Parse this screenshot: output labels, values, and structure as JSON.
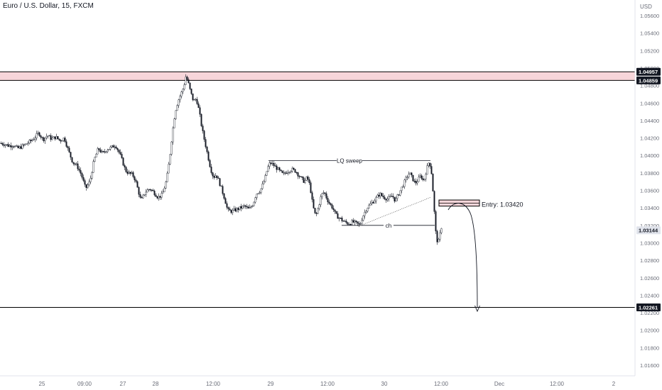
{
  "header": {
    "title": "Euro / U.S. Dollar, 15, FXCM",
    "currency": "USD"
  },
  "chart_data": {
    "type": "candlestick",
    "y_axis": {
      "ticks": [
        "1.05600",
        "1.05400",
        "1.05200",
        "1.05000",
        "1.04800",
        "1.04600",
        "1.04400",
        "1.04200",
        "1.04000",
        "1.03800",
        "1.03600",
        "1.03400",
        "1.03200",
        "1.03000",
        "1.02800",
        "1.02600",
        "1.02400",
        "1.02200",
        "1.02000",
        "1.01800",
        "1.01600"
      ],
      "range": [
        1.0158,
        1.0574
      ]
    },
    "x_axis": {
      "ticks": [
        "25",
        "09:00",
        "27",
        "28",
        "12:00",
        "29",
        "12:00",
        "30",
        "12:00",
        "Dec",
        "12:00",
        "2"
      ]
    },
    "price_labels": [
      {
        "value": "1.04957",
        "style": "dark",
        "role": "zone_top"
      },
      {
        "value": "1.04859",
        "style": "dark",
        "role": "zone_bottom"
      },
      {
        "value": "1.03144",
        "style": "light",
        "role": "last_price"
      },
      {
        "value": "1.02261",
        "style": "dark",
        "role": "target"
      }
    ],
    "annotations": {
      "lq_sweep": "LQ sweep",
      "ch": "ch",
      "entry": "Entry: 1.03420"
    },
    "levels": {
      "resistance_zone": [
        1.04859,
        1.04957
      ],
      "target": 1.02261,
      "lq_sweep_level": 1.0394,
      "ch_level": 1.032,
      "entry_zone": [
        1.0342,
        1.0349
      ]
    },
    "price_path": [
      [
        0,
        1.0414
      ],
      [
        6,
        1.0413
      ],
      [
        12,
        1.0411
      ],
      [
        18,
        1.0412
      ],
      [
        24,
        1.0408
      ],
      [
        30,
        1.041
      ],
      [
        36,
        1.0413
      ],
      [
        42,
        1.0416
      ],
      [
        48,
        1.042
      ],
      [
        54,
        1.0426
      ],
      [
        60,
        1.0418
      ],
      [
        66,
        1.0423
      ],
      [
        72,
        1.0419
      ],
      [
        78,
        1.0421
      ],
      [
        84,
        1.0417
      ],
      [
        90,
        1.042
      ],
      [
        96,
        1.0405
      ],
      [
        102,
        1.0392
      ],
      [
        108,
        1.0388
      ],
      [
        114,
        1.0378
      ],
      [
        120,
        1.0362
      ],
      [
        126,
        1.037
      ],
      [
        132,
        1.0395
      ],
      [
        138,
        1.0408
      ],
      [
        144,
        1.0402
      ],
      [
        150,
        1.0407
      ],
      [
        156,
        1.0409
      ],
      [
        162,
        1.0412
      ],
      [
        168,
        1.0402
      ],
      [
        172,
        1.0393
      ],
      [
        176,
        1.0383
      ],
      [
        180,
        1.038
      ],
      [
        186,
        1.0378
      ],
      [
        190,
        1.0372
      ],
      [
        194,
        1.036
      ],
      [
        198,
        1.0348
      ],
      [
        204,
        1.0358
      ],
      [
        210,
        1.0362
      ],
      [
        216,
        1.0358
      ],
      [
        222,
        1.0352
      ],
      [
        228,
        1.0355
      ],
      [
        234,
        1.0372
      ],
      [
        238,
        1.0395
      ],
      [
        242,
        1.0425
      ],
      [
        246,
        1.045
      ],
      [
        250,
        1.0462
      ],
      [
        254,
        1.047
      ],
      [
        258,
        1.0478
      ],
      [
        261,
        1.049
      ],
      [
        264,
        1.0485
      ],
      [
        268,
        1.0472
      ],
      [
        272,
        1.0462
      ],
      [
        276,
        1.0465
      ],
      [
        280,
        1.045
      ],
      [
        284,
        1.043
      ],
      [
        288,
        1.0415
      ],
      [
        292,
        1.04
      ],
      [
        296,
        1.0385
      ],
      [
        300,
        1.0375
      ],
      [
        304,
        1.0378
      ],
      [
        308,
        1.037
      ],
      [
        312,
        1.036
      ],
      [
        316,
        1.035
      ],
      [
        320,
        1.0337
      ],
      [
        326,
        1.0336
      ],
      [
        332,
        1.0338
      ],
      [
        338,
        1.034
      ],
      [
        344,
        1.0342
      ],
      [
        350,
        1.0338
      ],
      [
        356,
        1.0345
      ],
      [
        360,
        1.0356
      ],
      [
        366,
        1.036
      ],
      [
        372,
        1.0372
      ],
      [
        376,
        1.0385
      ],
      [
        380,
        1.0392
      ],
      [
        386,
        1.0388
      ],
      [
        392,
        1.0383
      ],
      [
        398,
        1.0378
      ],
      [
        404,
        1.0382
      ],
      [
        410,
        1.0384
      ],
      [
        416,
        1.0382
      ],
      [
        422,
        1.0375
      ],
      [
        428,
        1.037
      ],
      [
        432,
        1.0375
      ],
      [
        436,
        1.0365
      ],
      [
        440,
        1.0342
      ],
      [
        444,
        1.033
      ],
      [
        448,
        1.0342
      ],
      [
        452,
        1.0355
      ],
      [
        456,
        1.0358
      ],
      [
        460,
        1.035
      ],
      [
        464,
        1.0344
      ],
      [
        468,
        1.034
      ],
      [
        472,
        1.0332
      ],
      [
        478,
        1.0328
      ],
      [
        484,
        1.0324
      ],
      [
        490,
        1.0322
      ],
      [
        496,
        1.0324
      ],
      [
        502,
        1.0322
      ],
      [
        506,
        1.032
      ],
      [
        510,
        1.033
      ],
      [
        516,
        1.034
      ],
      [
        522,
        1.0345
      ],
      [
        528,
        1.035
      ],
      [
        534,
        1.0356
      ],
      [
        540,
        1.0352
      ],
      [
        546,
        1.035
      ],
      [
        552,
        1.0354
      ],
      [
        556,
        1.0348
      ],
      [
        562,
        1.0358
      ],
      [
        568,
        1.0368
      ],
      [
        572,
        1.0375
      ],
      [
        576,
        1.038
      ],
      [
        580,
        1.0374
      ],
      [
        584,
        1.0368
      ],
      [
        588,
        1.0372
      ],
      [
        592,
        1.0377
      ],
      [
        596,
        1.037
      ],
      [
        600,
        1.0384
      ],
      [
        604,
        1.0394
      ],
      [
        607,
        1.038
      ],
      [
        609,
        1.036
      ],
      [
        611,
        1.0335
      ],
      [
        613,
        1.0312
      ],
      [
        616,
        1.0298
      ],
      [
        619,
        1.031
      ],
      [
        621,
        1.0318
      ]
    ]
  }
}
